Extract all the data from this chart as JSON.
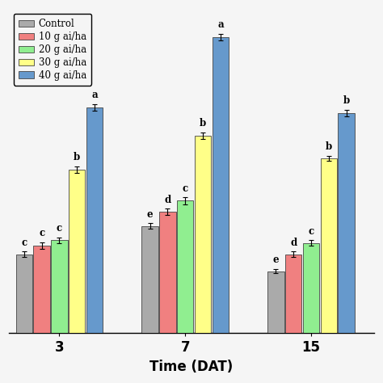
{
  "groups": [
    "3",
    "7",
    "15"
  ],
  "treatments": [
    "Control",
    "10 g ai/ha",
    "20 g ai/ha",
    "30 g ai/ha",
    "40 g ai/ha"
  ],
  "values": [
    [
      0.28,
      0.31,
      0.33,
      0.58,
      0.8
    ],
    [
      0.38,
      0.43,
      0.47,
      0.7,
      1.05
    ],
    [
      0.22,
      0.28,
      0.32,
      0.62,
      0.78
    ]
  ],
  "errors": [
    [
      0.01,
      0.012,
      0.01,
      0.012,
      0.012
    ],
    [
      0.01,
      0.012,
      0.012,
      0.012,
      0.012
    ],
    [
      0.008,
      0.01,
      0.01,
      0.01,
      0.012
    ]
  ],
  "letters": [
    [
      "c",
      "c",
      "c",
      "b",
      "a"
    ],
    [
      "e",
      "d",
      "c",
      "b",
      "a"
    ],
    [
      "e",
      "d",
      "c",
      "b",
      "b"
    ]
  ],
  "colors": [
    "#aaaaaa",
    "#f08080",
    "#90ee90",
    "#ffff88",
    "#6699cc"
  ],
  "bar_width": 0.13,
  "group_centers": [
    1.0,
    2.0,
    3.0
  ],
  "xlabel": "Time (DAT)",
  "legend_labels": [
    "Control",
    "10 g ai/ha",
    "20 g ai/ha",
    "30 g ai/ha",
    "40 g ai/ha"
  ],
  "ylim": [
    0,
    1.15
  ],
  "figsize": [
    4.74,
    4.74
  ],
  "dpi": 100,
  "bg_color": "#f5f5f5"
}
